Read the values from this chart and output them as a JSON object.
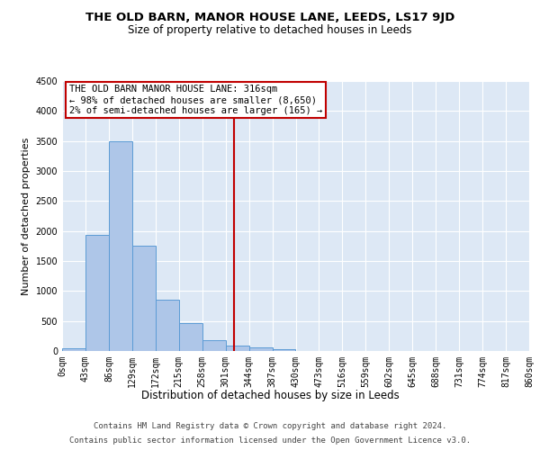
{
  "title1": "THE OLD BARN, MANOR HOUSE LANE, LEEDS, LS17 9JD",
  "title2": "Size of property relative to detached houses in Leeds",
  "xlabel": "Distribution of detached houses by size in Leeds",
  "ylabel": "Number of detached properties",
  "bar_edges": [
    0,
    43,
    86,
    129,
    172,
    215,
    258,
    301,
    344,
    387,
    430,
    473,
    516,
    559,
    602,
    645,
    688,
    731,
    774,
    817,
    860
  ],
  "bar_values": [
    50,
    1930,
    3500,
    1760,
    850,
    460,
    175,
    90,
    65,
    35,
    0,
    0,
    0,
    0,
    0,
    0,
    0,
    0,
    0,
    0
  ],
  "bar_color": "#aec6e8",
  "bar_edge_color": "#5b9bd5",
  "vline_x": 316,
  "vline_color": "#c00000",
  "annotation_line1": "THE OLD BARN MANOR HOUSE LANE: 316sqm",
  "annotation_line2": "← 98% of detached houses are smaller (8,650)",
  "annotation_line3": "2% of semi-detached houses are larger (165) →",
  "annotation_box_color": "#ffffff",
  "annotation_box_edge": "#c00000",
  "ylim": [
    0,
    4500
  ],
  "xlim": [
    0,
    860
  ],
  "bg_color": "#dde8f5",
  "footer1": "Contains HM Land Registry data © Crown copyright and database right 2024.",
  "footer2": "Contains public sector information licensed under the Open Government Licence v3.0.",
  "tick_labels": [
    "0sqm",
    "43sqm",
    "86sqm",
    "129sqm",
    "172sqm",
    "215sqm",
    "258sqm",
    "301sqm",
    "344sqm",
    "387sqm",
    "430sqm",
    "473sqm",
    "516sqm",
    "559sqm",
    "602sqm",
    "645sqm",
    "688sqm",
    "731sqm",
    "774sqm",
    "817sqm",
    "860sqm"
  ],
  "title1_fontsize": 9.5,
  "title2_fontsize": 8.5,
  "xlabel_fontsize": 8.5,
  "ylabel_fontsize": 8,
  "tick_fontsize": 7,
  "annotation_fontsize": 7.5,
  "footer_fontsize": 6.5,
  "yticks": [
    0,
    500,
    1000,
    1500,
    2000,
    2500,
    3000,
    3500,
    4000,
    4500
  ]
}
